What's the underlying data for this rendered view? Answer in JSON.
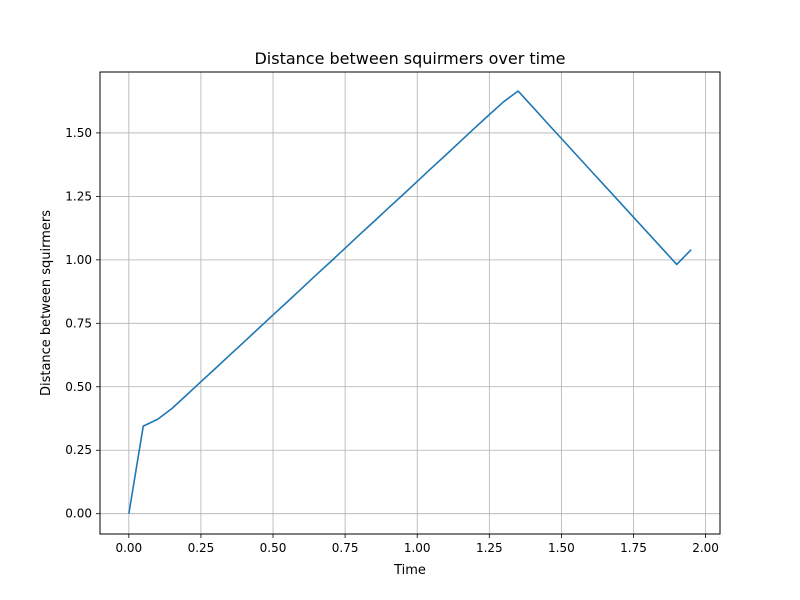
{
  "chart_data": {
    "type": "line",
    "title": "Distance between squirmers over time",
    "xlabel": "Time",
    "ylabel": "Distance between squirmers",
    "xlim": [
      -0.1,
      2.05
    ],
    "ylim": [
      -0.08,
      1.74
    ],
    "xticks": [
      0.0,
      0.25,
      0.5,
      0.75,
      1.0,
      1.25,
      1.5,
      1.75,
      2.0
    ],
    "xtick_labels": [
      "0.00",
      "0.25",
      "0.50",
      "0.75",
      "1.00",
      "1.25",
      "1.50",
      "1.75",
      "2.00"
    ],
    "yticks": [
      0.0,
      0.25,
      0.5,
      0.75,
      1.0,
      1.25,
      1.5
    ],
    "ytick_labels": [
      "0.00",
      "0.25",
      "0.50",
      "0.75",
      "1.00",
      "1.25",
      "1.50"
    ],
    "grid": true,
    "color": "#1f77b4",
    "x": [
      0.0,
      0.05,
      0.1,
      0.15,
      0.2,
      0.25,
      0.3,
      0.35,
      0.4,
      0.45,
      0.5,
      0.55,
      0.6,
      0.65,
      0.7,
      0.75,
      0.8,
      0.85,
      0.9,
      0.95,
      1.0,
      1.05,
      1.1,
      1.15,
      1.2,
      1.25,
      1.3,
      1.35,
      1.4,
      1.45,
      1.5,
      1.55,
      1.6,
      1.65,
      1.7,
      1.75,
      1.8,
      1.85,
      1.9,
      1.95
    ],
    "y": [
      0.0,
      0.345,
      0.372,
      0.415,
      0.467,
      0.52,
      0.572,
      0.625,
      0.677,
      0.73,
      0.783,
      0.835,
      0.888,
      0.941,
      0.993,
      1.046,
      1.099,
      1.151,
      1.204,
      1.256,
      1.309,
      1.362,
      1.414,
      1.467,
      1.52,
      1.572,
      1.623,
      1.665,
      1.603,
      1.54,
      1.478,
      1.416,
      1.354,
      1.292,
      1.23,
      1.168,
      1.106,
      1.044,
      0.982,
      1.04
    ]
  }
}
